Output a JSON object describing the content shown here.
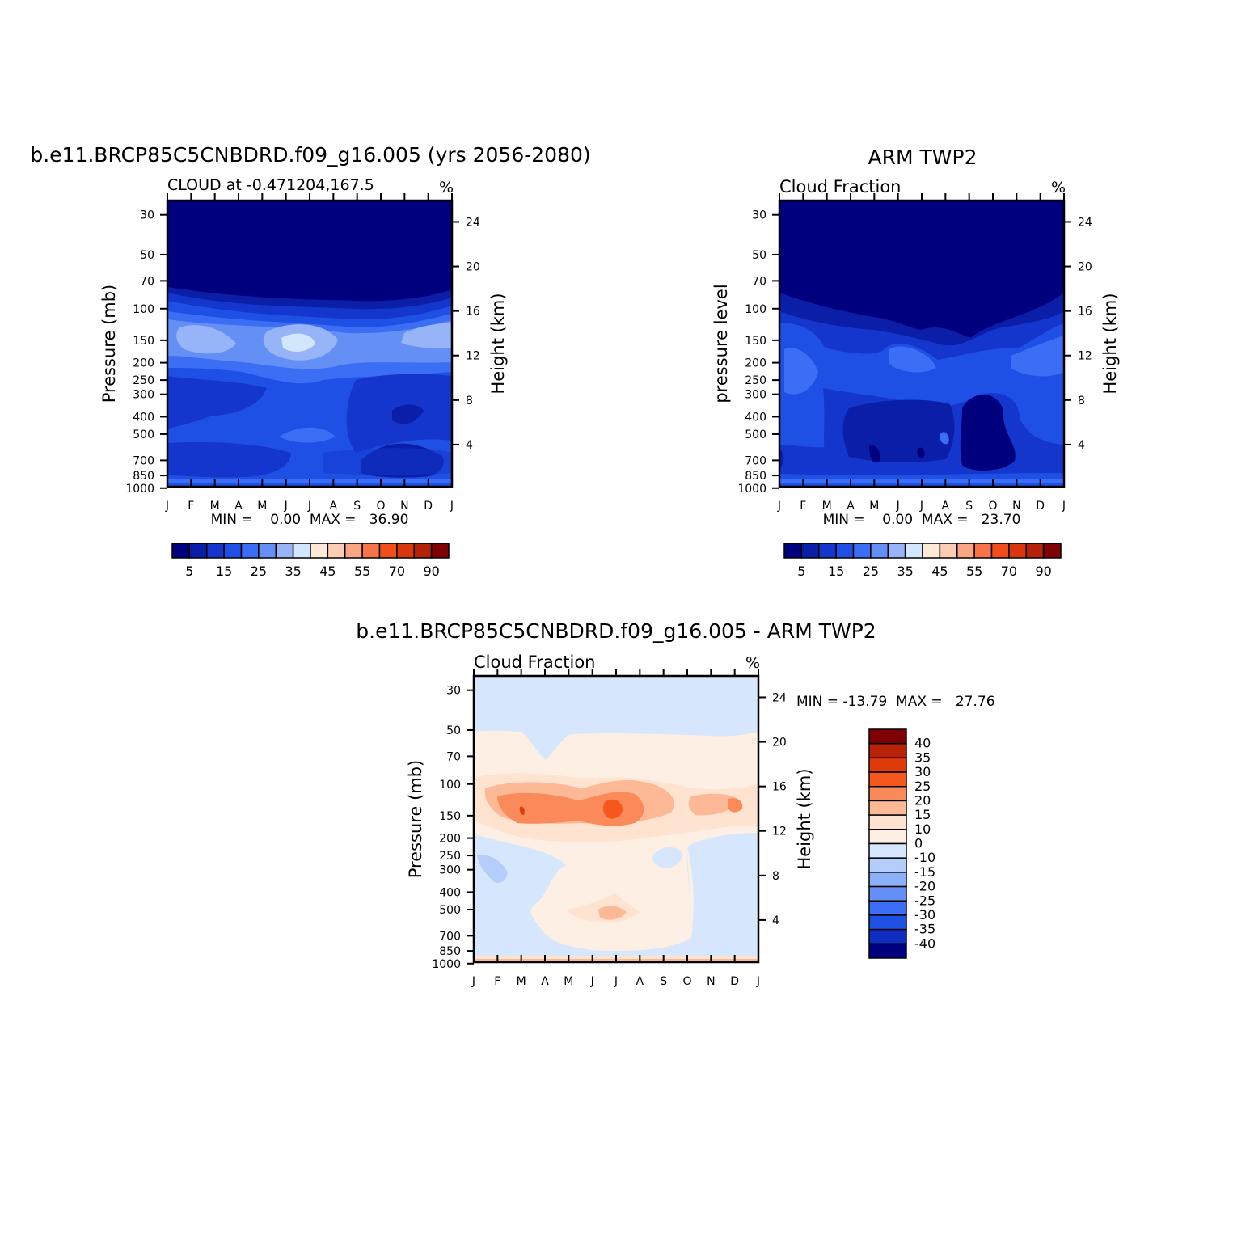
{
  "chart_data": [
    {
      "type": "heatmap",
      "title": "b.e11.BRCP85C5CNBDRD.f09_g16.005 (yrs 2056-2080)",
      "subtitle_left": "CLOUD at -0.471204,167.5",
      "units": "%",
      "ylabel": "Pressure (mb)",
      "ylabel_right": "Height (km)",
      "x_ticks": [
        "J",
        "F",
        "M",
        "A",
        "M",
        "J",
        "J",
        "A",
        "S",
        "O",
        "N",
        "D",
        "J"
      ],
      "y_ticks": [
        "30",
        "50",
        "70",
        "100",
        "150",
        "200",
        "250",
        "300",
        "400",
        "500",
        "700",
        "850",
        "1000"
      ],
      "y_ticks_right": [
        "24",
        "20",
        "16",
        "12",
        "8",
        "4"
      ],
      "stats": "MIN =    0.00  MAX =   36.90",
      "min": 0.0,
      "max": 36.9,
      "colorbar_labels": [
        "5",
        "15",
        "25",
        "35",
        "45",
        "55",
        "70",
        "90"
      ],
      "levels": [
        0,
        5,
        10,
        15,
        20,
        25,
        30,
        35,
        40,
        45,
        50,
        55,
        60,
        70,
        80,
        90,
        100
      ]
    },
    {
      "type": "heatmap",
      "title": "ARM TWP2",
      "subtitle_left": "Cloud Fraction",
      "units": "%",
      "ylabel": "pressure level",
      "ylabel_right": "Height (km)",
      "x_ticks": [
        "J",
        "F",
        "M",
        "A",
        "M",
        "J",
        "J",
        "A",
        "S",
        "O",
        "N",
        "D",
        "J"
      ],
      "y_ticks": [
        "30",
        "50",
        "70",
        "100",
        "150",
        "200",
        "250",
        "300",
        "400",
        "500",
        "700",
        "850",
        "1000"
      ],
      "y_ticks_right": [
        "24",
        "20",
        "16",
        "12",
        "8",
        "4"
      ],
      "stats": "MIN =    0.00  MAX =   23.70",
      "min": 0.0,
      "max": 23.7,
      "colorbar_labels": [
        "5",
        "15",
        "25",
        "35",
        "45",
        "55",
        "70",
        "90"
      ],
      "levels": [
        0,
        5,
        10,
        15,
        20,
        25,
        30,
        35,
        40,
        45,
        50,
        55,
        60,
        70,
        80,
        90,
        100
      ]
    },
    {
      "type": "heatmap",
      "title": "b.e11.BRCP85C5CNBDRD.f09_g16.005 - ARM TWP2",
      "subtitle_left": "Cloud Fraction",
      "units": "%",
      "ylabel": "Pressure (mb)",
      "ylabel_right": "Height (km)",
      "x_ticks": [
        "J",
        "F",
        "M",
        "A",
        "M",
        "J",
        "J",
        "A",
        "S",
        "O",
        "N",
        "D",
        "J"
      ],
      "y_ticks": [
        "30",
        "50",
        "70",
        "100",
        "150",
        "200",
        "250",
        "300",
        "400",
        "500",
        "700",
        "850",
        "1000"
      ],
      "y_ticks_right": [
        "24",
        "20",
        "16",
        "12",
        "8",
        "4"
      ],
      "stats": "MIN = -13.79  MAX =   27.76",
      "min": -13.79,
      "max": 27.76,
      "colorbar_labels": [
        "40",
        "35",
        "30",
        "25",
        "20",
        "15",
        "10",
        "0",
        "-10",
        "-15",
        "-20",
        "-25",
        "-30",
        "-35",
        "-40"
      ]
    }
  ],
  "colors": {
    "seq": [
      "#00007f",
      "#0a1ea8",
      "#1436cc",
      "#1e50e6",
      "#3c6ef5",
      "#6490f5",
      "#96b4f7",
      "#d2e6fd",
      "#ffead8",
      "#fdcdb4",
      "#fba582",
      "#f7734a",
      "#f04f1c",
      "#d8360c",
      "#b42208",
      "#7f0005"
    ],
    "div": [
      "#7f0005",
      "#b82207",
      "#de3a0a",
      "#f5571c",
      "#fa8a5a",
      "#fdb896",
      "#fde3d0",
      "#fdefe3",
      "#d6e7fd",
      "#b4cdfb",
      "#8cb0f8",
      "#6490f5",
      "#3c6ef5",
      "#1e50e6",
      "#0f2ec0",
      "#00007f"
    ]
  }
}
